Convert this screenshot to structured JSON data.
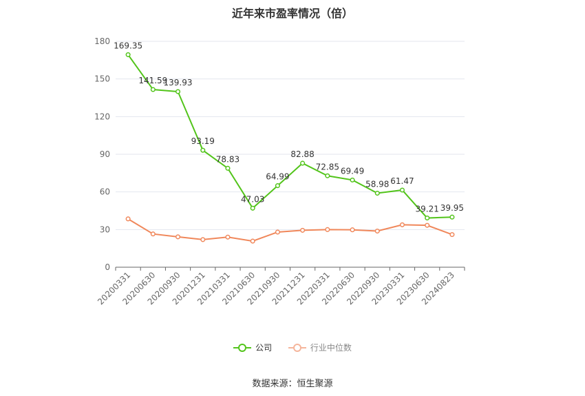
{
  "chart_data": {
    "type": "line",
    "title": "近年来市盈率情况（倍）",
    "categories": [
      "20200331",
      "20200630",
      "20200930",
      "20201231",
      "20210331",
      "20210630",
      "20210930",
      "20211231",
      "20220331",
      "20220630",
      "20220930",
      "20230331",
      "20230630",
      "20240823"
    ],
    "series": [
      {
        "name": "公司",
        "color": "#52c41a",
        "values": [
          169.35,
          141.59,
          139.93,
          93.19,
          78.83,
          47.03,
          64.99,
          82.88,
          72.85,
          69.49,
          58.98,
          61.47,
          39.21,
          39.95
        ]
      },
      {
        "name": "行业中位数",
        "color": "#f0875a",
        "values": [
          38.5,
          26.5,
          24.2,
          22,
          24,
          20.8,
          28,
          29.4,
          30,
          29.8,
          28.8,
          33.8,
          33.4,
          26
        ]
      }
    ],
    "ylim": [
      0,
      180
    ],
    "yticks": [
      0,
      30,
      60,
      90,
      120,
      150,
      180
    ],
    "grid": true,
    "legend": "bottom",
    "source": "数据来源：恒生聚源"
  }
}
